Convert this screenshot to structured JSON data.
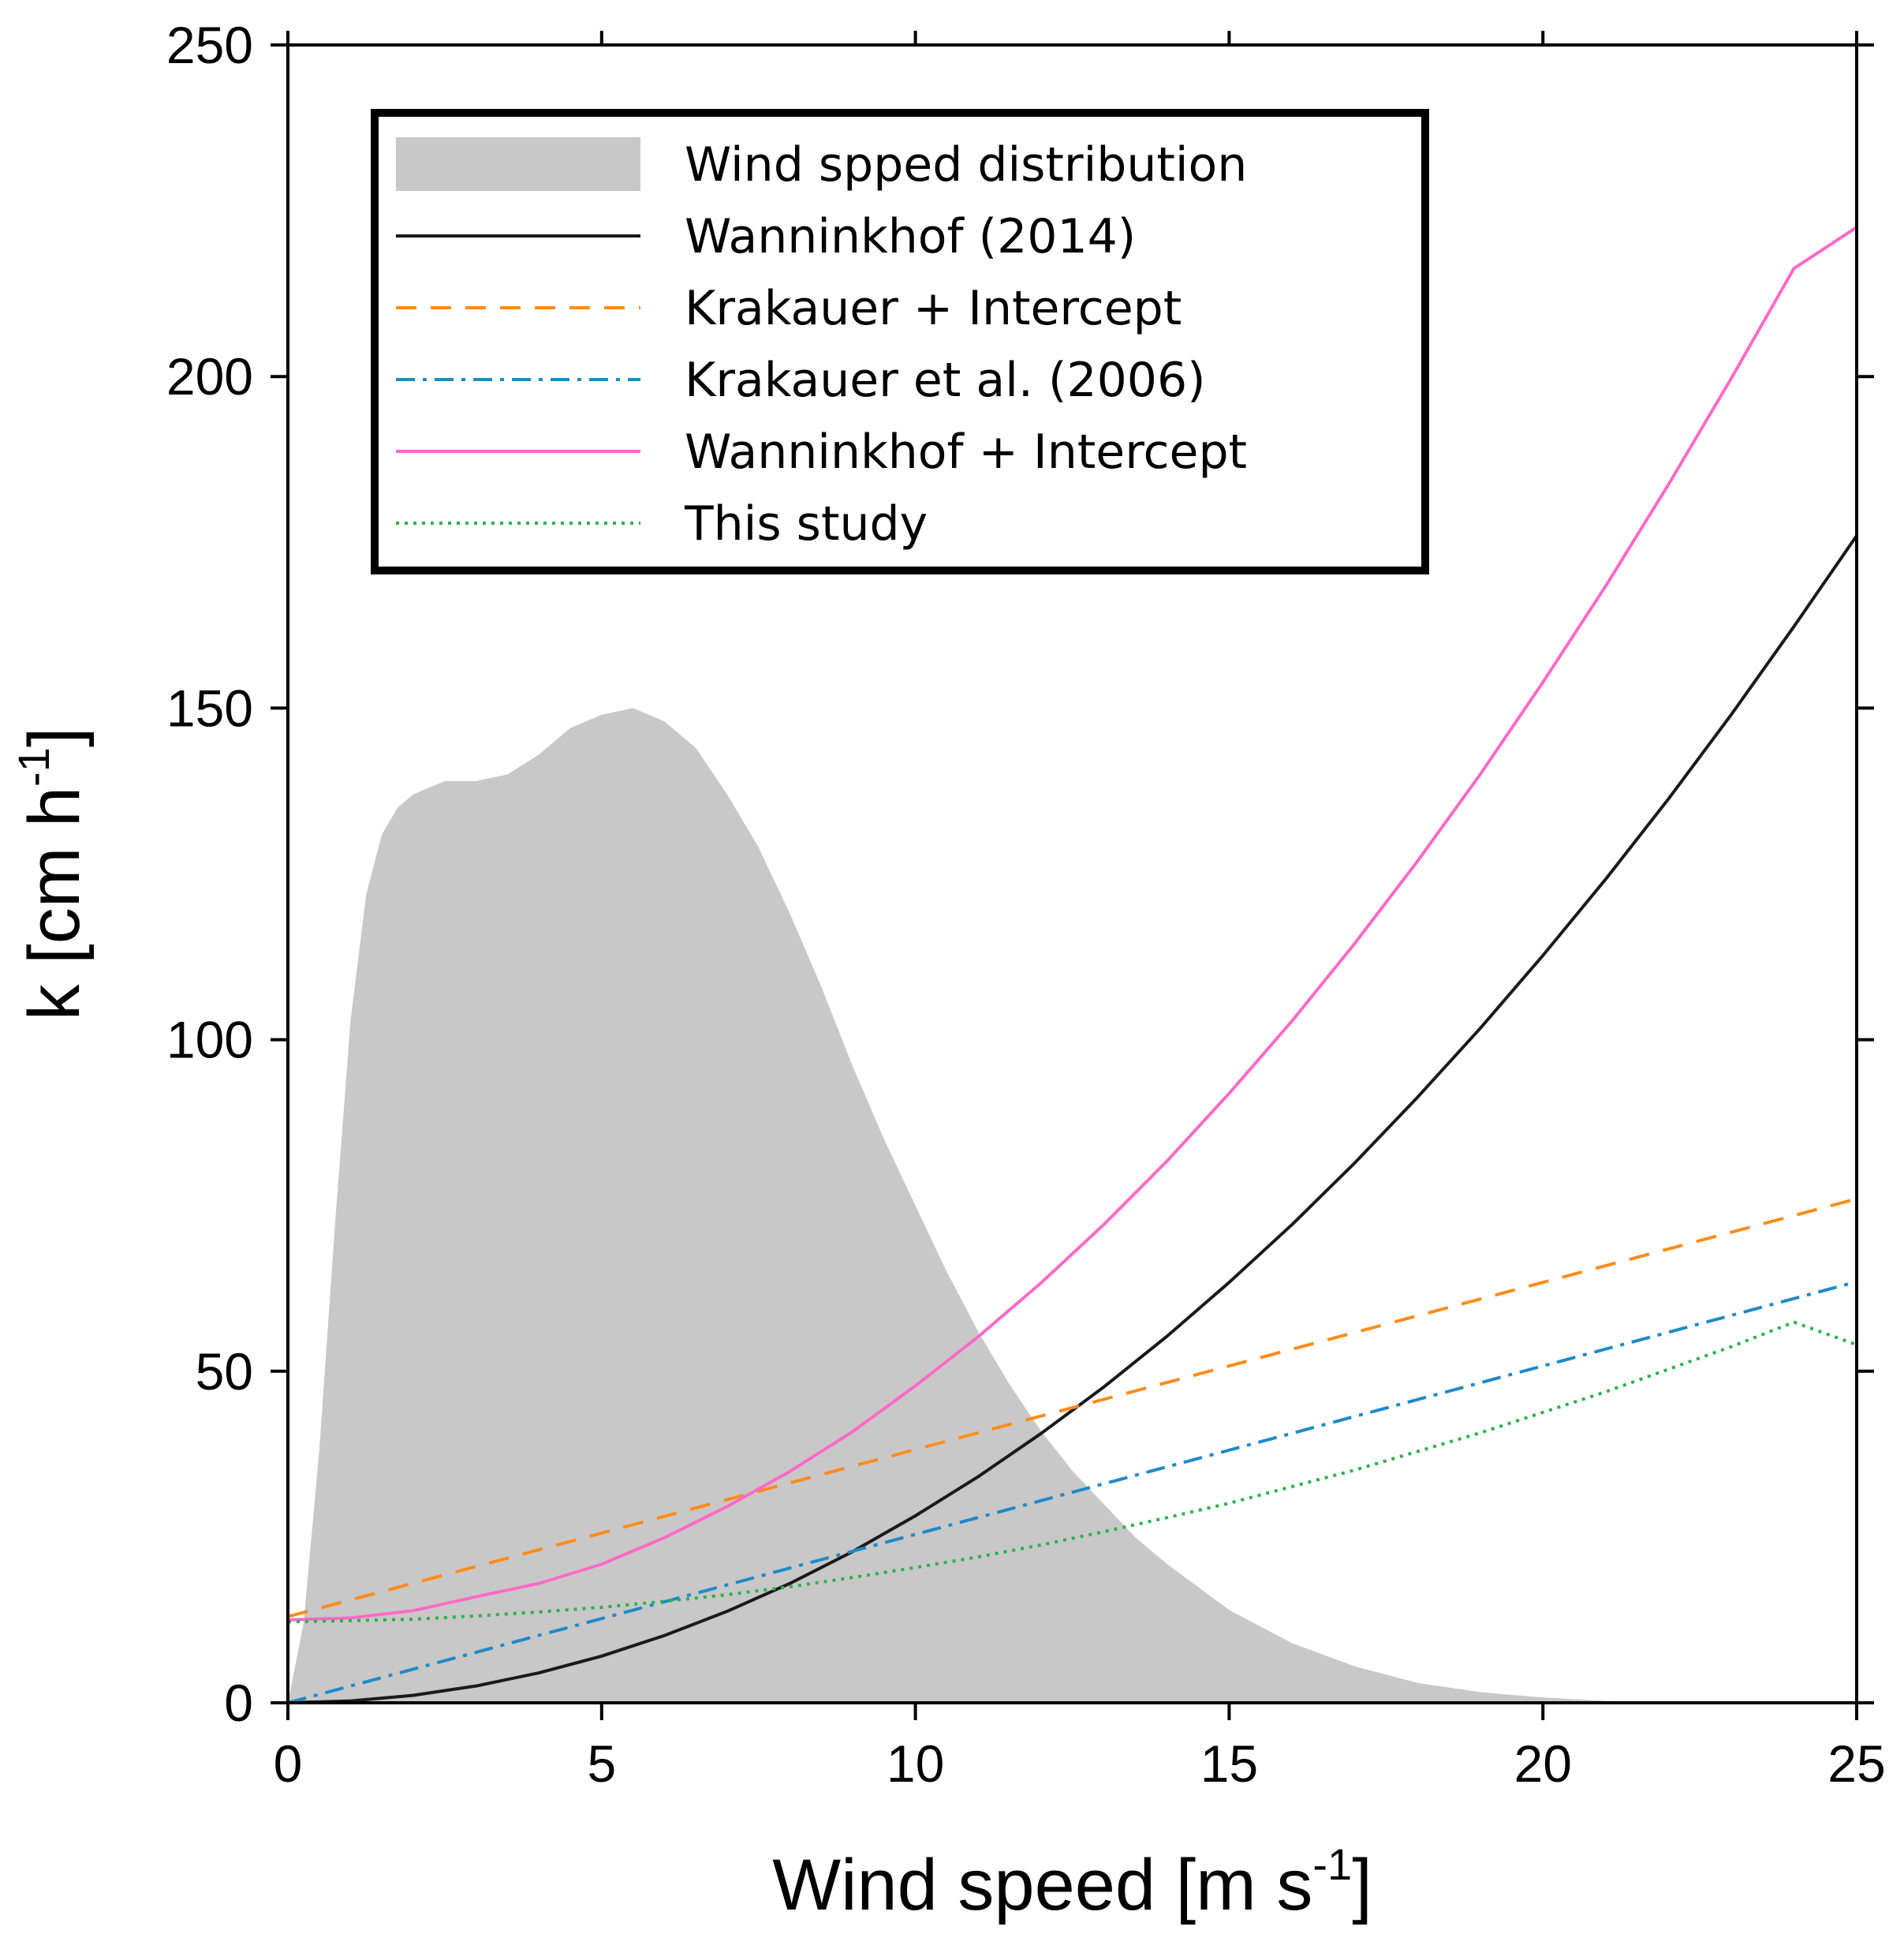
{
  "chart_data": {
    "type": "line",
    "title": "",
    "xlabel": "Wind speed [m s",
    "xlabel_sup": "-1",
    "xlabel_end": "]",
    "ylabel": "k [cm h",
    "ylabel_sup": "-1",
    "ylabel_end": "]",
    "xlim": [
      0,
      25
    ],
    "ylim": [
      0,
      250
    ],
    "xticks": [
      0,
      5,
      10,
      15,
      20,
      25
    ],
    "yticks": [
      0,
      50,
      100,
      150,
      200,
      250
    ],
    "xtick_labels": [
      "0",
      "5",
      "10",
      "15",
      "20",
      "25"
    ],
    "ytick_labels": [
      "0",
      "50",
      "100",
      "150",
      "200",
      "250"
    ],
    "grid": false,
    "legend_position": "top-left",
    "distribution": {
      "name": "Wind spped distribution",
      "color": "#c8c8c8",
      "x": [
        0,
        0.25,
        0.5,
        0.75,
        1,
        1.25,
        1.5,
        1.75,
        2,
        2.25,
        2.5,
        3,
        3.5,
        4,
        4.5,
        5,
        5.5,
        6,
        6.5,
        7,
        7.5,
        8,
        8.5,
        9,
        9.5,
        10,
        10.5,
        11,
        11.5,
        12,
        12.5,
        13,
        13.5,
        14,
        15,
        16,
        17,
        18,
        19,
        20,
        21,
        22,
        23,
        25
      ],
      "y": [
        0,
        12,
        38,
        72,
        103,
        122,
        131,
        135,
        137,
        138,
        139,
        139,
        140,
        143,
        147,
        149,
        150,
        148,
        144,
        137,
        129,
        119,
        108,
        96,
        85,
        75,
        65,
        56,
        48,
        41,
        35,
        30,
        25,
        21,
        14,
        9,
        5.5,
        3,
        1.6,
        0.8,
        0.3,
        0.1,
        0,
        0
      ]
    },
    "series": [
      {
        "name": "Wanninkhof (2014)",
        "color": "#1a1a1a",
        "dash": "",
        "x": [
          0,
          1,
          2,
          3,
          4,
          5,
          6,
          7,
          8,
          9,
          10,
          11,
          12,
          13,
          14,
          15,
          16,
          17,
          18,
          19,
          20,
          21,
          22,
          23,
          24,
          25
        ],
        "y": [
          0,
          0.28,
          1.13,
          2.54,
          4.51,
          7.04,
          10.14,
          13.8,
          18.0,
          22.8,
          28.2,
          34.1,
          40.6,
          47.6,
          55.2,
          63.4,
          72.1,
          81.4,
          91.3,
          101.7,
          112.7,
          124.2,
          136.3,
          149.0,
          162.3,
          176.0
        ]
      },
      {
        "name": "Krakauer + Intercept",
        "color": "#ff8c1a",
        "dash": "26,18",
        "x": [
          0,
          25
        ],
        "y": [
          13,
          76
        ]
      },
      {
        "name": "Krakauer et al. (2006)",
        "color": "#1f8ac8",
        "dash": "24,10,5,10",
        "x": [
          0,
          25
        ],
        "y": [
          0,
          63.5
        ]
      },
      {
        "name": "Wanninkhof + Intercept",
        "color": "#ff69c8",
        "dash": "",
        "x": [
          0,
          1,
          2,
          3,
          4,
          5,
          6,
          7,
          8,
          9,
          10,
          11,
          12,
          13,
          14,
          15,
          16,
          17,
          18,
          19,
          20,
          21,
          22,
          23,
          24,
          25
        ],
        "y": [
          12.5,
          12.8,
          13.9,
          16.0,
          18.0,
          20.9,
          24.9,
          29.6,
          34.9,
          40.9,
          47.8,
          55.2,
          63.3,
          72.1,
          81.6,
          91.9,
          102.8,
          114.5,
          126.9,
          140.0,
          153.9,
          168.4,
          183.7,
          199.7,
          216.3,
          222.5
        ]
      },
      {
        "name": "This study",
        "color": "#2bb24c",
        "dash": "4,7",
        "x": [
          0,
          1,
          2,
          3,
          4,
          5,
          6,
          7,
          8,
          9,
          10,
          11,
          12,
          13,
          14,
          15,
          16,
          17,
          18,
          19,
          20,
          21,
          22,
          23,
          24,
          25
        ],
        "y": [
          12.2,
          12.4,
          12.6,
          13.1,
          13.7,
          14.4,
          15.3,
          16.3,
          17.5,
          18.9,
          20.4,
          22.0,
          23.8,
          25.8,
          27.9,
          30.1,
          32.6,
          35.1,
          37.9,
          40.7,
          43.8,
          46.9,
          50.3,
          53.7,
          57.4,
          54.0
        ]
      }
    ]
  }
}
